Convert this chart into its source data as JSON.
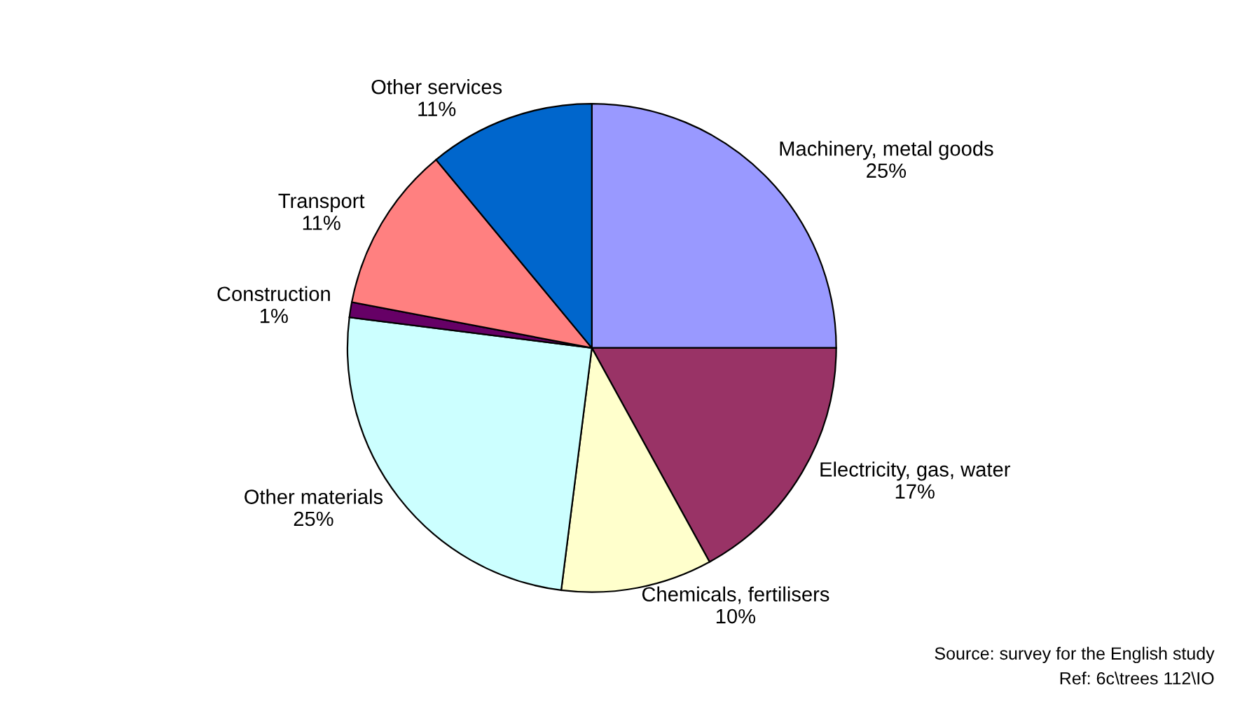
{
  "chart_data": {
    "type": "pie",
    "categories": [
      "Machinery, metal goods",
      "Electricity, gas, water",
      "Chemicals, fertilisers",
      "Other materials",
      "Construction",
      "Transport",
      "Other services"
    ],
    "values": [
      25,
      17,
      10,
      25,
      1,
      11,
      11
    ],
    "value_labels": [
      "25%",
      "17%",
      "10%",
      "25%",
      "1%",
      "11%",
      "11%"
    ],
    "colors": [
      "#9999ff",
      "#993366",
      "#ffffcc",
      "#ccffff",
      "#660066",
      "#ff8080",
      "#0066cc"
    ],
    "annotations": [
      "Source: survey for the English study",
      "Ref: 6c\\trees 112\\IO"
    ],
    "legend": false
  }
}
